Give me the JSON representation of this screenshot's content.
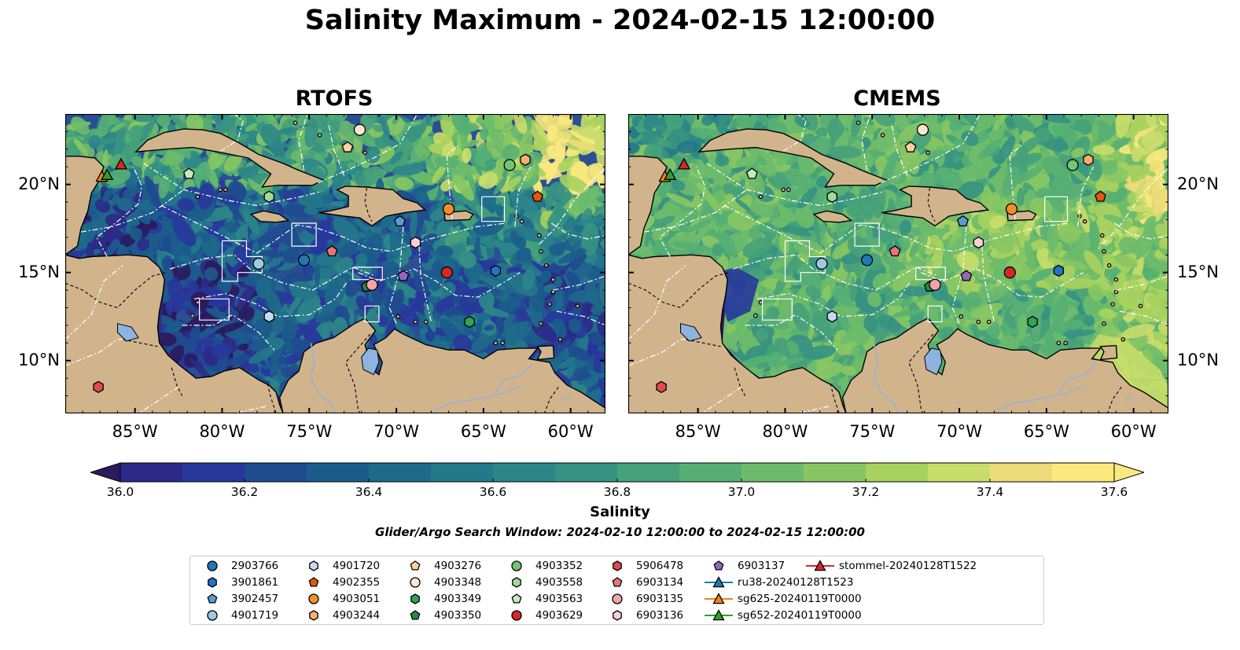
{
  "title": "Salinity Maximum - 2024-02-15 12:00:00",
  "panels": [
    {
      "name": "RTOFS",
      "scheme": "rtofs"
    },
    {
      "name": "CMEMS",
      "scheme": "cmems"
    }
  ],
  "map": {
    "lon_range": [
      -89,
      -58
    ],
    "lat_range": [
      7,
      24
    ],
    "lon_ticks": [
      -85,
      -80,
      -75,
      -70,
      -65,
      -60
    ],
    "lon_tick_labels": [
      "85°W",
      "80°W",
      "75°W",
      "70°W",
      "65°W",
      "60°W"
    ],
    "lat_ticks": [
      10,
      15,
      20
    ],
    "lat_tick_labels": [
      "10°N",
      "15°N",
      "20°N"
    ],
    "land_color": "#d2b48c",
    "lake_color": "#8eb3de",
    "eez_line_color": "#ffffff",
    "borders": "dashed"
  },
  "colorbar": {
    "label": "Salinity",
    "min": 36.0,
    "max": 37.6,
    "step": 0.1,
    "extend": "both",
    "tick_values": [
      36.0,
      36.2,
      36.4,
      36.6,
      36.8,
      37.0,
      37.2,
      37.4,
      37.6
    ],
    "tick_labels": [
      "36.0",
      "36.2",
      "36.4",
      "36.6",
      "36.8",
      "37.0",
      "37.2",
      "37.4",
      "37.6"
    ],
    "colors": [
      "#2b1a5e",
      "#2c2a87",
      "#28379b",
      "#1f4b8f",
      "#1c5c8c",
      "#1e6a8b",
      "#237889",
      "#2c8688",
      "#369282",
      "#46a17a",
      "#57af74",
      "#6dbb6c",
      "#88c663",
      "#a7d25f",
      "#c9dd6b",
      "#eedc7a",
      "#fbe97d"
    ]
  },
  "search_window": "Glider/Argo Search Window: 2024-02-10 12:00:00 to 2024-02-15 12:00:00",
  "platforms": [
    {
      "id": "2903766",
      "marker": "circle",
      "color": "#1f77b4",
      "lon": -75.3,
      "lat": 15.7
    },
    {
      "id": "3901861",
      "marker": "hexagon",
      "color": "#2870c8",
      "lon": -64.3,
      "lat": 15.1
    },
    {
      "id": "3902457",
      "marker": "pentagon",
      "color": "#5b9bd5",
      "lon": -69.8,
      "lat": 17.9
    },
    {
      "id": "4901719",
      "marker": "circle",
      "color": "#9ecae1",
      "lon": -77.9,
      "lat": 15.5
    },
    {
      "id": "4901720",
      "marker": "hexagon",
      "color": "#c6dbef",
      "lon": -77.3,
      "lat": 12.5
    },
    {
      "id": "4902355",
      "marker": "pentagon",
      "color": "#e6550d",
      "lon": -61.9,
      "lat": 19.3
    },
    {
      "id": "4903051",
      "marker": "circle",
      "color": "#f28e2b",
      "lon": -67.0,
      "lat": 18.6
    },
    {
      "id": "4903244",
      "marker": "hexagon",
      "color": "#fdae6b",
      "lon": -62.6,
      "lat": 21.4
    },
    {
      "id": "4903276",
      "marker": "pentagon",
      "color": "#fdd0a2",
      "lon": -72.8,
      "lat": 22.1
    },
    {
      "id": "4903348",
      "marker": "circle",
      "color": "#fee6ce",
      "lon": -72.1,
      "lat": 23.1
    },
    {
      "id": "4903349",
      "marker": "hexagon",
      "color": "#31a354",
      "lon": -65.8,
      "lat": 12.2
    },
    {
      "id": "4903350",
      "marker": "pentagon",
      "color": "#238b45",
      "lon": -71.7,
      "lat": 14.2
    },
    {
      "id": "4903352",
      "marker": "circle",
      "color": "#74c476",
      "lon": -63.5,
      "lat": 21.1
    },
    {
      "id": "4903558",
      "marker": "hexagon",
      "color": "#a1d99b",
      "lon": -77.3,
      "lat": 19.3
    },
    {
      "id": "4903563",
      "marker": "pentagon",
      "color": "#c7e9c0",
      "lon": -81.9,
      "lat": 20.6
    },
    {
      "id": "4903629",
      "marker": "circle",
      "color": "#d62728",
      "lon": -67.1,
      "lat": 15.0
    },
    {
      "id": "5906478",
      "marker": "hexagon",
      "color": "#de4c4c",
      "lon": -87.1,
      "lat": 8.5
    },
    {
      "id": "6903134",
      "marker": "pentagon",
      "color": "#e9727a",
      "lon": -73.7,
      "lat": 16.2
    },
    {
      "id": "6903135",
      "marker": "circle",
      "color": "#f4a3a8",
      "lon": -71.4,
      "lat": 14.3
    },
    {
      "id": "6903136",
      "marker": "hexagon",
      "color": "#fcd0d3",
      "lon": -68.9,
      "lat": 16.7
    },
    {
      "id": "6903137",
      "marker": "pentagon",
      "color": "#9467bd",
      "lon": -69.6,
      "lat": 14.8
    },
    {
      "id": "ru38-20240128T1523",
      "marker": "triangle-line",
      "color": "#1f77b4",
      "lon": null,
      "lat": null
    },
    {
      "id": "sg625-20240119T0000",
      "marker": "triangle-line",
      "color": "#ff7f0e",
      "lon": -86.9,
      "lat": 20.4
    },
    {
      "id": "sg652-20240119T0000",
      "marker": "triangle-line",
      "color": "#2ca02c",
      "lon": -86.6,
      "lat": 20.5
    },
    {
      "id": "stommel-20240128T1522",
      "marker": "triangle-line",
      "color": "#d62728",
      "lon": -85.8,
      "lat": 21.1
    }
  ]
}
